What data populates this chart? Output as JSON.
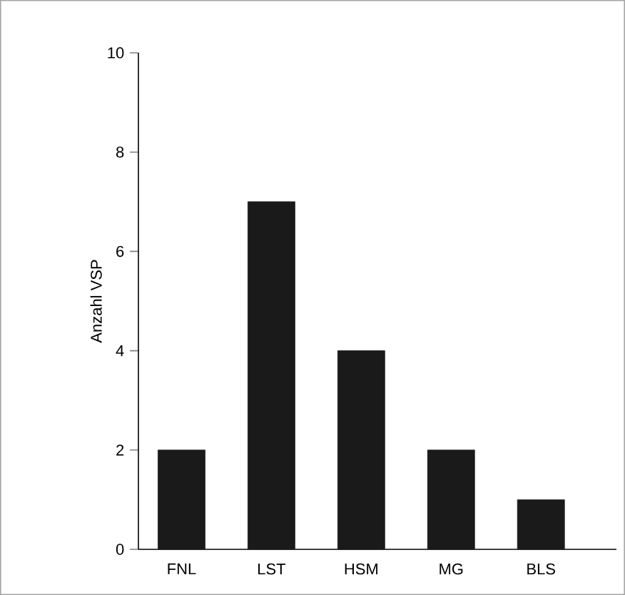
{
  "chart_data": {
    "type": "bar",
    "ylabel": "Anzahl VSP",
    "categories": [
      "FNL",
      "LST",
      "HSM",
      "MG",
      "BLS"
    ],
    "values": [
      2,
      7,
      4,
      2,
      1
    ],
    "color": "#1a1a1a",
    "ylim": [
      0,
      10
    ],
    "yticks": [
      0,
      2,
      4,
      6,
      8,
      10
    ],
    "grid": false
  }
}
